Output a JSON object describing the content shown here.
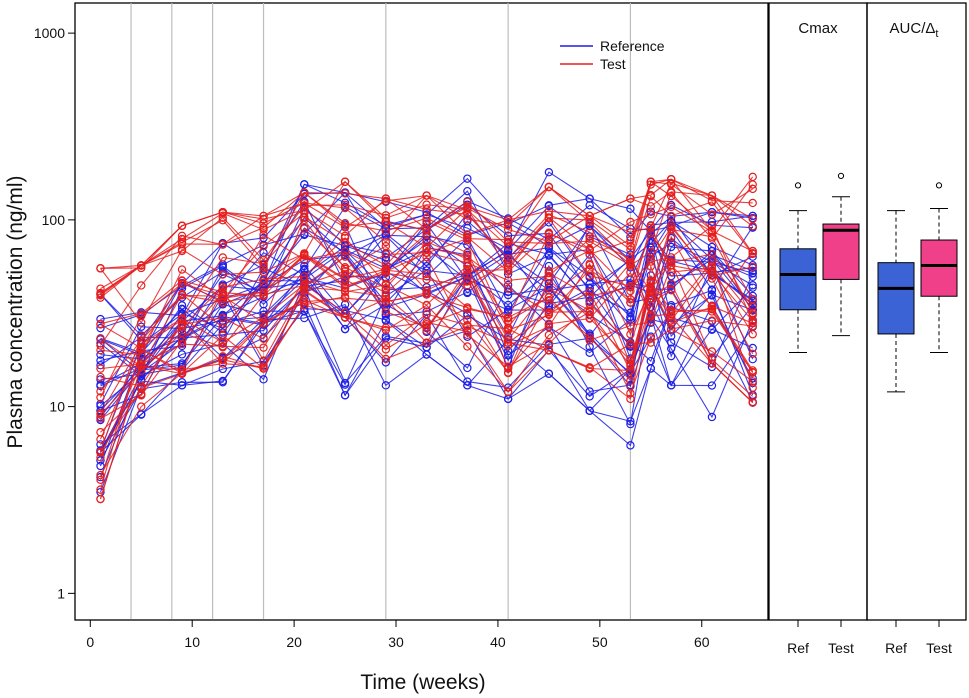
{
  "chart_data": [
    {
      "type": "line",
      "title": "",
      "xlabel": "Time (weeks)",
      "ylabel": "Plasma concentration (ng/ml)",
      "yscale": "log",
      "xlim": [
        -1.5,
        66.5
      ],
      "ylim": [
        0.72,
        1450
      ],
      "xticks": [
        0,
        10,
        20,
        30,
        40,
        50,
        60
      ],
      "yticks": [
        1,
        10,
        100,
        1000
      ],
      "vlines": [
        4,
        8,
        12,
        17,
        29,
        41,
        53
      ],
      "grid": false,
      "legend": "top-center",
      "timepoints": [
        1,
        5,
        9,
        13,
        17,
        21,
        25,
        29,
        33,
        37,
        41,
        45,
        49,
        53,
        55,
        57,
        61,
        65
      ],
      "series": [
        {
          "name": "Reference",
          "color": "#1f1fe6",
          "n_subjects": 30,
          "median_values": [
            11,
            17,
            25,
            33,
            35,
            55,
            57,
            46,
            50,
            50,
            39,
            52,
            45,
            30,
            47,
            55,
            50,
            42
          ],
          "min_values": [
            3.1,
            8.8,
            13,
            13.5,
            14,
            28,
            11.5,
            13,
            19,
            13,
            11,
            15,
            9.5,
            6.2,
            16,
            13,
            8.8,
            8.8
          ],
          "max_values": [
            40,
            32,
            55,
            75,
            80,
            155,
            140,
            125,
            110,
            170,
            105,
            180,
            130,
            115,
            125,
            120,
            110,
            105
          ]
        },
        {
          "name": "Test",
          "color": "#e61f1f",
          "n_subjects": 30,
          "median_values": [
            14,
            24,
            35,
            47,
            45,
            68,
            65,
            55,
            62,
            58,
            45,
            62,
            55,
            45,
            60,
            68,
            55,
            42
          ],
          "min_values": [
            3.2,
            10,
            15,
            17,
            16,
            35,
            30,
            18,
            22,
            21,
            12,
            20,
            16,
            11,
            22,
            26,
            17,
            10.5
          ],
          "max_values": [
            55,
            57,
            93,
            110,
            105,
            140,
            160,
            130,
            135,
            125,
            100,
            150,
            105,
            130,
            160,
            165,
            135,
            170
          ]
        }
      ]
    },
    {
      "type": "box",
      "title": "Cmax",
      "categories": [
        "Ref",
        "Test"
      ],
      "colors": [
        "#3b63d6",
        "#f0408a"
      ],
      "boxes": [
        {
          "name": "Ref",
          "whisker_low": 19.5,
          "q1": 33,
          "median": 51,
          "q3": 70,
          "whisker_high": 112,
          "outliers": [
            153
          ]
        },
        {
          "name": "Test",
          "whisker_low": 24,
          "q1": 48,
          "median": 88,
          "q3": 95,
          "whisker_high": 133,
          "outliers": [
            172
          ]
        }
      ]
    },
    {
      "type": "box",
      "title": "AUC/Δt",
      "title_main": "AUC/Δ",
      "title_subscript": "t",
      "categories": [
        "Ref",
        "Test"
      ],
      "colors": [
        "#3b63d6",
        "#f0408a"
      ],
      "boxes": [
        {
          "name": "Ref",
          "whisker_low": 12,
          "q1": 24.5,
          "median": 43,
          "q3": 59,
          "whisker_high": 112,
          "outliers": []
        },
        {
          "name": "Test",
          "whisker_low": 19.5,
          "q1": 39,
          "median": 57,
          "q3": 78,
          "whisker_high": 115,
          "outliers": [
            153
          ]
        }
      ]
    }
  ]
}
